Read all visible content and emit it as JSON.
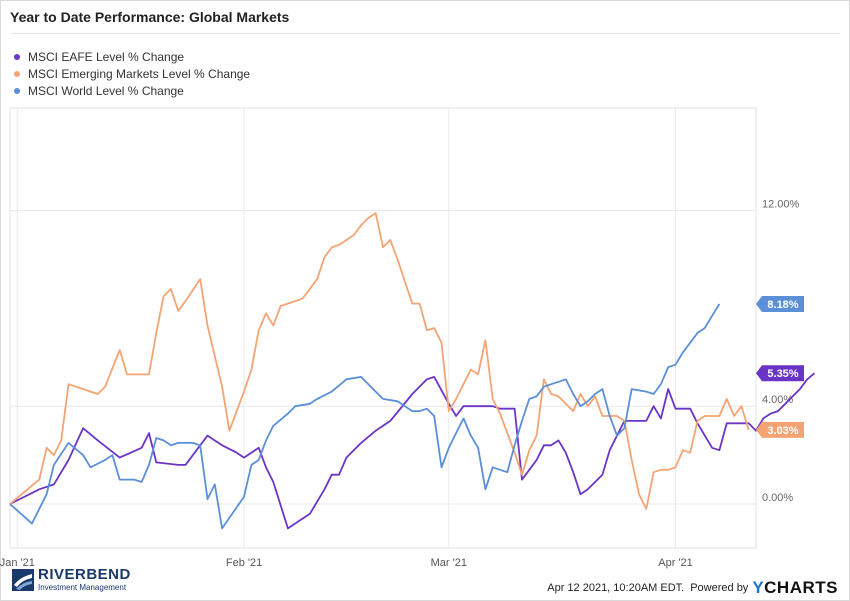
{
  "title": "Year to Date Performance: Global Markets",
  "footer": {
    "timestamp": "Apr 12 2021, 10:20AM EDT.",
    "powered_by": "Powered by",
    "brand_y": "Y",
    "brand_rest": "CHARTS"
  },
  "logo": {
    "name": "RIVERBEND",
    "subtitle": "Investment Management"
  },
  "chart_data": {
    "type": "line",
    "y_ticks": [
      "0.00%",
      "4.00%",
      "12.00%"
    ],
    "y_tick_values": [
      0,
      4,
      12
    ],
    "x_ticks": [
      "Jan '21",
      "Feb '21",
      "Mar '21",
      "Apr '21"
    ],
    "x_tick_values": [
      "2021-01-01",
      "2021-02-01",
      "2021-03-01",
      "2021-04-01"
    ],
    "ylim": [
      -1.8,
      16.2
    ],
    "x_start": "2020-12-31",
    "x_end": "2021-04-12",
    "grid": true,
    "legend_position": "top-left",
    "series": [
      {
        "name": "MSCI EAFE Level % Change",
        "color": "#6a35c6",
        "end_label": "5.35%",
        "points": [
          [
            0,
            0
          ],
          [
            4,
            0.6
          ],
          [
            6,
            0.8
          ],
          [
            8,
            1.8
          ],
          [
            10,
            3.1
          ],
          [
            12,
            2.6
          ],
          [
            15,
            1.9
          ],
          [
            18,
            2.3
          ],
          [
            19,
            2.9
          ],
          [
            20,
            1.7
          ],
          [
            23,
            1.6
          ],
          [
            24,
            1.6
          ],
          [
            27,
            2.8
          ],
          [
            29,
            2.4
          ],
          [
            31,
            2.1
          ],
          [
            32,
            1.9
          ],
          [
            34,
            2.3
          ],
          [
            35,
            1.5
          ],
          [
            36,
            0.9
          ],
          [
            38,
            -1.0
          ],
          [
            41,
            -0.4
          ],
          [
            43,
            0.6
          ],
          [
            44,
            1.2
          ],
          [
            45,
            1.2
          ],
          [
            46,
            1.9
          ],
          [
            48,
            2.5
          ],
          [
            50,
            3.0
          ],
          [
            52,
            3.4
          ],
          [
            55,
            4.5
          ],
          [
            57,
            5.1
          ],
          [
            58,
            5.2
          ],
          [
            60,
            4.1
          ],
          [
            61,
            3.6
          ],
          [
            62,
            4.0
          ],
          [
            65,
            4.0
          ],
          [
            66,
            4.0
          ],
          [
            67,
            3.9
          ],
          [
            68,
            3.9
          ],
          [
            69,
            3.9
          ],
          [
            70,
            1.0
          ],
          [
            71,
            1.4
          ],
          [
            72,
            1.8
          ],
          [
            73,
            2.4
          ],
          [
            74,
            2.4
          ],
          [
            75,
            2.6
          ],
          [
            76,
            2.1
          ],
          [
            77,
            1.3
          ],
          [
            78,
            0.4
          ],
          [
            79,
            0.6
          ],
          [
            81,
            1.2
          ],
          [
            82,
            2.2
          ],
          [
            83,
            2.8
          ],
          [
            84,
            3.4
          ],
          [
            86,
            3.4
          ],
          [
            87,
            3.4
          ],
          [
            88,
            4.0
          ],
          [
            89,
            3.5
          ],
          [
            90,
            4.7
          ],
          [
            91,
            3.9
          ],
          [
            93,
            3.9
          ],
          [
            94,
            3.3
          ],
          [
            96,
            2.3
          ],
          [
            97,
            2.2
          ],
          [
            98,
            3.3
          ],
          [
            100,
            3.3
          ],
          [
            101,
            3.3
          ],
          [
            102,
            3.0
          ],
          [
            103,
            3.5
          ],
          [
            104,
            3.7
          ],
          [
            105,
            3.8
          ],
          [
            106,
            4.1
          ],
          [
            107,
            4.4
          ],
          [
            108,
            4.7
          ],
          [
            109,
            5.1
          ],
          [
            110,
            5.35
          ]
        ]
      },
      {
        "name": "MSCI Emerging Markets Level % Change",
        "color": "#f4a474",
        "end_label": "3.03%",
        "points": [
          [
            0,
            0
          ],
          [
            4,
            1.0
          ],
          [
            5,
            2.3
          ],
          [
            6,
            2.0
          ],
          [
            7,
            2.6
          ],
          [
            8,
            4.9
          ],
          [
            10,
            4.7
          ],
          [
            12,
            4.5
          ],
          [
            13,
            4.8
          ],
          [
            15,
            6.3
          ],
          [
            16,
            5.3
          ],
          [
            18,
            5.3
          ],
          [
            19,
            5.3
          ],
          [
            20,
            7.0
          ],
          [
            21,
            8.5
          ],
          [
            22,
            8.8
          ],
          [
            23,
            7.9
          ],
          [
            24,
            8.3
          ],
          [
            26,
            9.2
          ],
          [
            27,
            7.3
          ],
          [
            29,
            4.8
          ],
          [
            30,
            3.0
          ],
          [
            31,
            3.8
          ],
          [
            32,
            4.6
          ],
          [
            33,
            5.5
          ],
          [
            34,
            7.1
          ],
          [
            35,
            7.8
          ],
          [
            36,
            7.3
          ],
          [
            37,
            8.1
          ],
          [
            39,
            8.3
          ],
          [
            40,
            8.4
          ],
          [
            42,
            9.2
          ],
          [
            43,
            10.1
          ],
          [
            44,
            10.5
          ],
          [
            45,
            10.6
          ],
          [
            47,
            11.0
          ],
          [
            48,
            11.4
          ],
          [
            49,
            11.7
          ],
          [
            50,
            11.9
          ],
          [
            51,
            10.5
          ],
          [
            52,
            10.8
          ],
          [
            53,
            10.0
          ],
          [
            54,
            9.1
          ],
          [
            55,
            8.2
          ],
          [
            56,
            8.2
          ],
          [
            57,
            7.1
          ],
          [
            58,
            7.2
          ],
          [
            59,
            6.6
          ],
          [
            60,
            3.8
          ],
          [
            61,
            4.3
          ],
          [
            62,
            4.9
          ],
          [
            63,
            5.5
          ],
          [
            64,
            5.3
          ],
          [
            65,
            6.7
          ],
          [
            66,
            4.3
          ],
          [
            67,
            3.7
          ],
          [
            68,
            2.9
          ],
          [
            69,
            2.1
          ],
          [
            70,
            1.2
          ],
          [
            71,
            2.2
          ],
          [
            72,
            2.8
          ],
          [
            73,
            5.1
          ],
          [
            74,
            4.5
          ],
          [
            75,
            4.4
          ],
          [
            77,
            3.8
          ],
          [
            78,
            4.5
          ],
          [
            79,
            4.0
          ],
          [
            80,
            4.4
          ],
          [
            81,
            3.6
          ],
          [
            82,
            3.6
          ],
          [
            83,
            3.6
          ],
          [
            84,
            3.4
          ],
          [
            85,
            1.8
          ],
          [
            86,
            0.4
          ],
          [
            87,
            -0.2
          ],
          [
            88,
            1.3
          ],
          [
            89,
            1.4
          ],
          [
            90,
            1.4
          ],
          [
            91,
            1.5
          ],
          [
            92,
            2.2
          ],
          [
            93,
            2.1
          ],
          [
            94,
            3.4
          ],
          [
            95,
            3.6
          ],
          [
            96,
            3.6
          ],
          [
            97,
            3.6
          ],
          [
            98,
            4.3
          ],
          [
            99,
            3.6
          ],
          [
            100,
            4.0
          ],
          [
            101,
            3.03
          ]
        ]
      },
      {
        "name": "MSCI World Level % Change",
        "color": "#5b8fd8",
        "end_label": "8.18%",
        "points": [
          [
            0,
            0
          ],
          [
            3,
            -0.8
          ],
          [
            5,
            0.4
          ],
          [
            6,
            1.6
          ],
          [
            8,
            2.5
          ],
          [
            10,
            2.0
          ],
          [
            11,
            1.5
          ],
          [
            13,
            1.8
          ],
          [
            14,
            2.0
          ],
          [
            15,
            1.0
          ],
          [
            17,
            1.0
          ],
          [
            18,
            0.9
          ],
          [
            19,
            1.6
          ],
          [
            20,
            2.7
          ],
          [
            21,
            2.6
          ],
          [
            22,
            2.4
          ],
          [
            23,
            2.5
          ],
          [
            24,
            2.5
          ],
          [
            25,
            2.5
          ],
          [
            26,
            2.4
          ],
          [
            27,
            0.2
          ],
          [
            28,
            0.8
          ],
          [
            29,
            -1.0
          ],
          [
            32,
            0.3
          ],
          [
            33,
            1.6
          ],
          [
            34,
            1.8
          ],
          [
            35,
            2.6
          ],
          [
            36,
            3.2
          ],
          [
            38,
            3.7
          ],
          [
            39,
            4.0
          ],
          [
            41,
            4.1
          ],
          [
            42,
            4.3
          ],
          [
            44,
            4.6
          ],
          [
            46,
            5.1
          ],
          [
            48,
            5.2
          ],
          [
            50,
            4.6
          ],
          [
            51,
            4.3
          ],
          [
            53,
            4.2
          ],
          [
            54,
            4.0
          ],
          [
            55,
            3.8
          ],
          [
            56,
            3.8
          ],
          [
            57,
            3.9
          ],
          [
            58,
            3.6
          ],
          [
            59,
            1.5
          ],
          [
            60,
            2.3
          ],
          [
            61,
            2.9
          ],
          [
            62,
            3.5
          ],
          [
            63,
            2.8
          ],
          [
            64,
            2.3
          ],
          [
            65,
            0.6
          ],
          [
            66,
            1.5
          ],
          [
            67,
            1.4
          ],
          [
            68,
            1.3
          ],
          [
            69,
            2.4
          ],
          [
            70,
            3.4
          ],
          [
            71,
            4.3
          ],
          [
            72,
            4.4
          ],
          [
            73,
            4.8
          ],
          [
            74,
            4.9
          ],
          [
            75,
            5.0
          ],
          [
            76,
            5.1
          ],
          [
            77,
            4.5
          ],
          [
            78,
            4.0
          ],
          [
            79,
            4.2
          ],
          [
            80,
            4.5
          ],
          [
            81,
            4.7
          ],
          [
            82,
            3.6
          ],
          [
            83,
            2.8
          ],
          [
            84,
            3.1
          ],
          [
            85,
            4.7
          ],
          [
            87,
            4.6
          ],
          [
            88,
            4.5
          ],
          [
            89,
            4.9
          ],
          [
            90,
            5.6
          ],
          [
            91,
            5.7
          ],
          [
            92,
            6.2
          ],
          [
            93,
            6.6
          ],
          [
            94,
            7.0
          ],
          [
            95,
            7.2
          ],
          [
            96,
            7.7
          ],
          [
            97,
            8.18
          ]
        ]
      }
    ]
  }
}
